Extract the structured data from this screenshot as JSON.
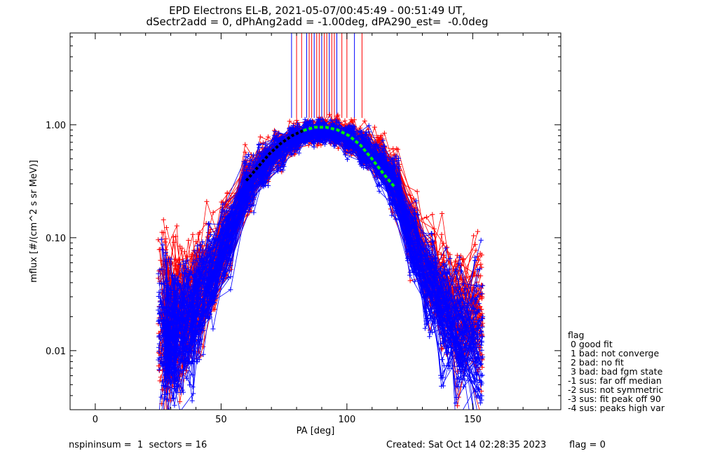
{
  "title_line1": "EPD Electrons EL-B, 2021-05-07/00:45:49 - 00:51:49 UT,",
  "title_line2": "dSectr2add = 0, dPhAng2add = -1.00deg, dPA290_est=  -0.0deg",
  "legend": {
    "title": "flag",
    "items": [
      " 0 good fit",
      " 1 bad: not converge",
      " 2 bad: no fit",
      " 3 bad: bad fgm state",
      "-1 sus: far off median",
      "-2 sus: not symmetric",
      "-3 sus: fit peak off 90",
      "-4 sus: peaks high var"
    ]
  },
  "footer": {
    "left": "nspininsum =  1  sectors = 16",
    "created": "Created: Sat Oct 14 02:28:35 2023",
    "flag": "flag = 0"
  },
  "colors": {
    "series_a": "#ff0000",
    "series_b": "#0000ff",
    "fit_high": "#00ee00",
    "fit_low": "#000000",
    "axes": "#000000",
    "background": "#ffffff"
  },
  "chart_data": {
    "type": "line",
    "xlabel": "PA [deg]",
    "ylabel": "mflux [#/(cm^2 s sr MeV)]",
    "xlim": [
      -10,
      185
    ],
    "ylim": [
      0.003,
      6.5
    ],
    "yscale": "log",
    "xticks": [
      0,
      50,
      100,
      150
    ],
    "xtick_labels": [
      "0",
      "50",
      "100",
      "150"
    ],
    "yticks": [
      0.01,
      0.1,
      1.0
    ],
    "ytick_labels": [
      "0.01",
      "0.10",
      "1.00"
    ],
    "grid": false,
    "markers": "+",
    "series_colors": [
      "red",
      "blue"
    ],
    "spectra_per_color": 100,
    "pa_sectors_deg": [
      27,
      30,
      33,
      37,
      41,
      46,
      52,
      61,
      67,
      73,
      79,
      85,
      90,
      95,
      101,
      107,
      113,
      119,
      126,
      133,
      139,
      145,
      152
    ],
    "median_profile_red": [
      0.022,
      0.018,
      0.021,
      0.025,
      0.033,
      0.05,
      0.1,
      0.3,
      0.45,
      0.62,
      0.78,
      0.85,
      0.88,
      0.86,
      0.78,
      0.62,
      0.5,
      0.34,
      0.11,
      0.05,
      0.03,
      0.022,
      0.02
    ],
    "median_profile_blue": [
      0.015,
      0.012,
      0.015,
      0.02,
      0.028,
      0.045,
      0.09,
      0.28,
      0.43,
      0.6,
      0.76,
      0.84,
      0.87,
      0.84,
      0.76,
      0.6,
      0.45,
      0.3,
      0.09,
      0.04,
      0.022,
      0.014,
      0.011
    ],
    "fit_curve": {
      "peak_pa": 90,
      "peak_flux": 0.95,
      "green_segment_pa": [
        85,
        119
      ],
      "black_segment_pa": [
        60,
        85
      ],
      "flux": [
        0.32,
        0.42,
        0.55,
        0.68,
        0.8,
        0.89,
        0.95,
        0.95,
        0.9,
        0.8,
        0.66,
        0.5,
        0.37,
        0.28
      ]
    },
    "vertical_lines_pa": [
      78,
      80,
      82,
      84,
      85,
      86,
      87,
      88,
      89,
      90,
      91,
      92,
      93,
      94,
      95,
      96,
      98,
      100,
      103,
      106
    ],
    "vertical_lines_bottom_flux": 1.15
  }
}
